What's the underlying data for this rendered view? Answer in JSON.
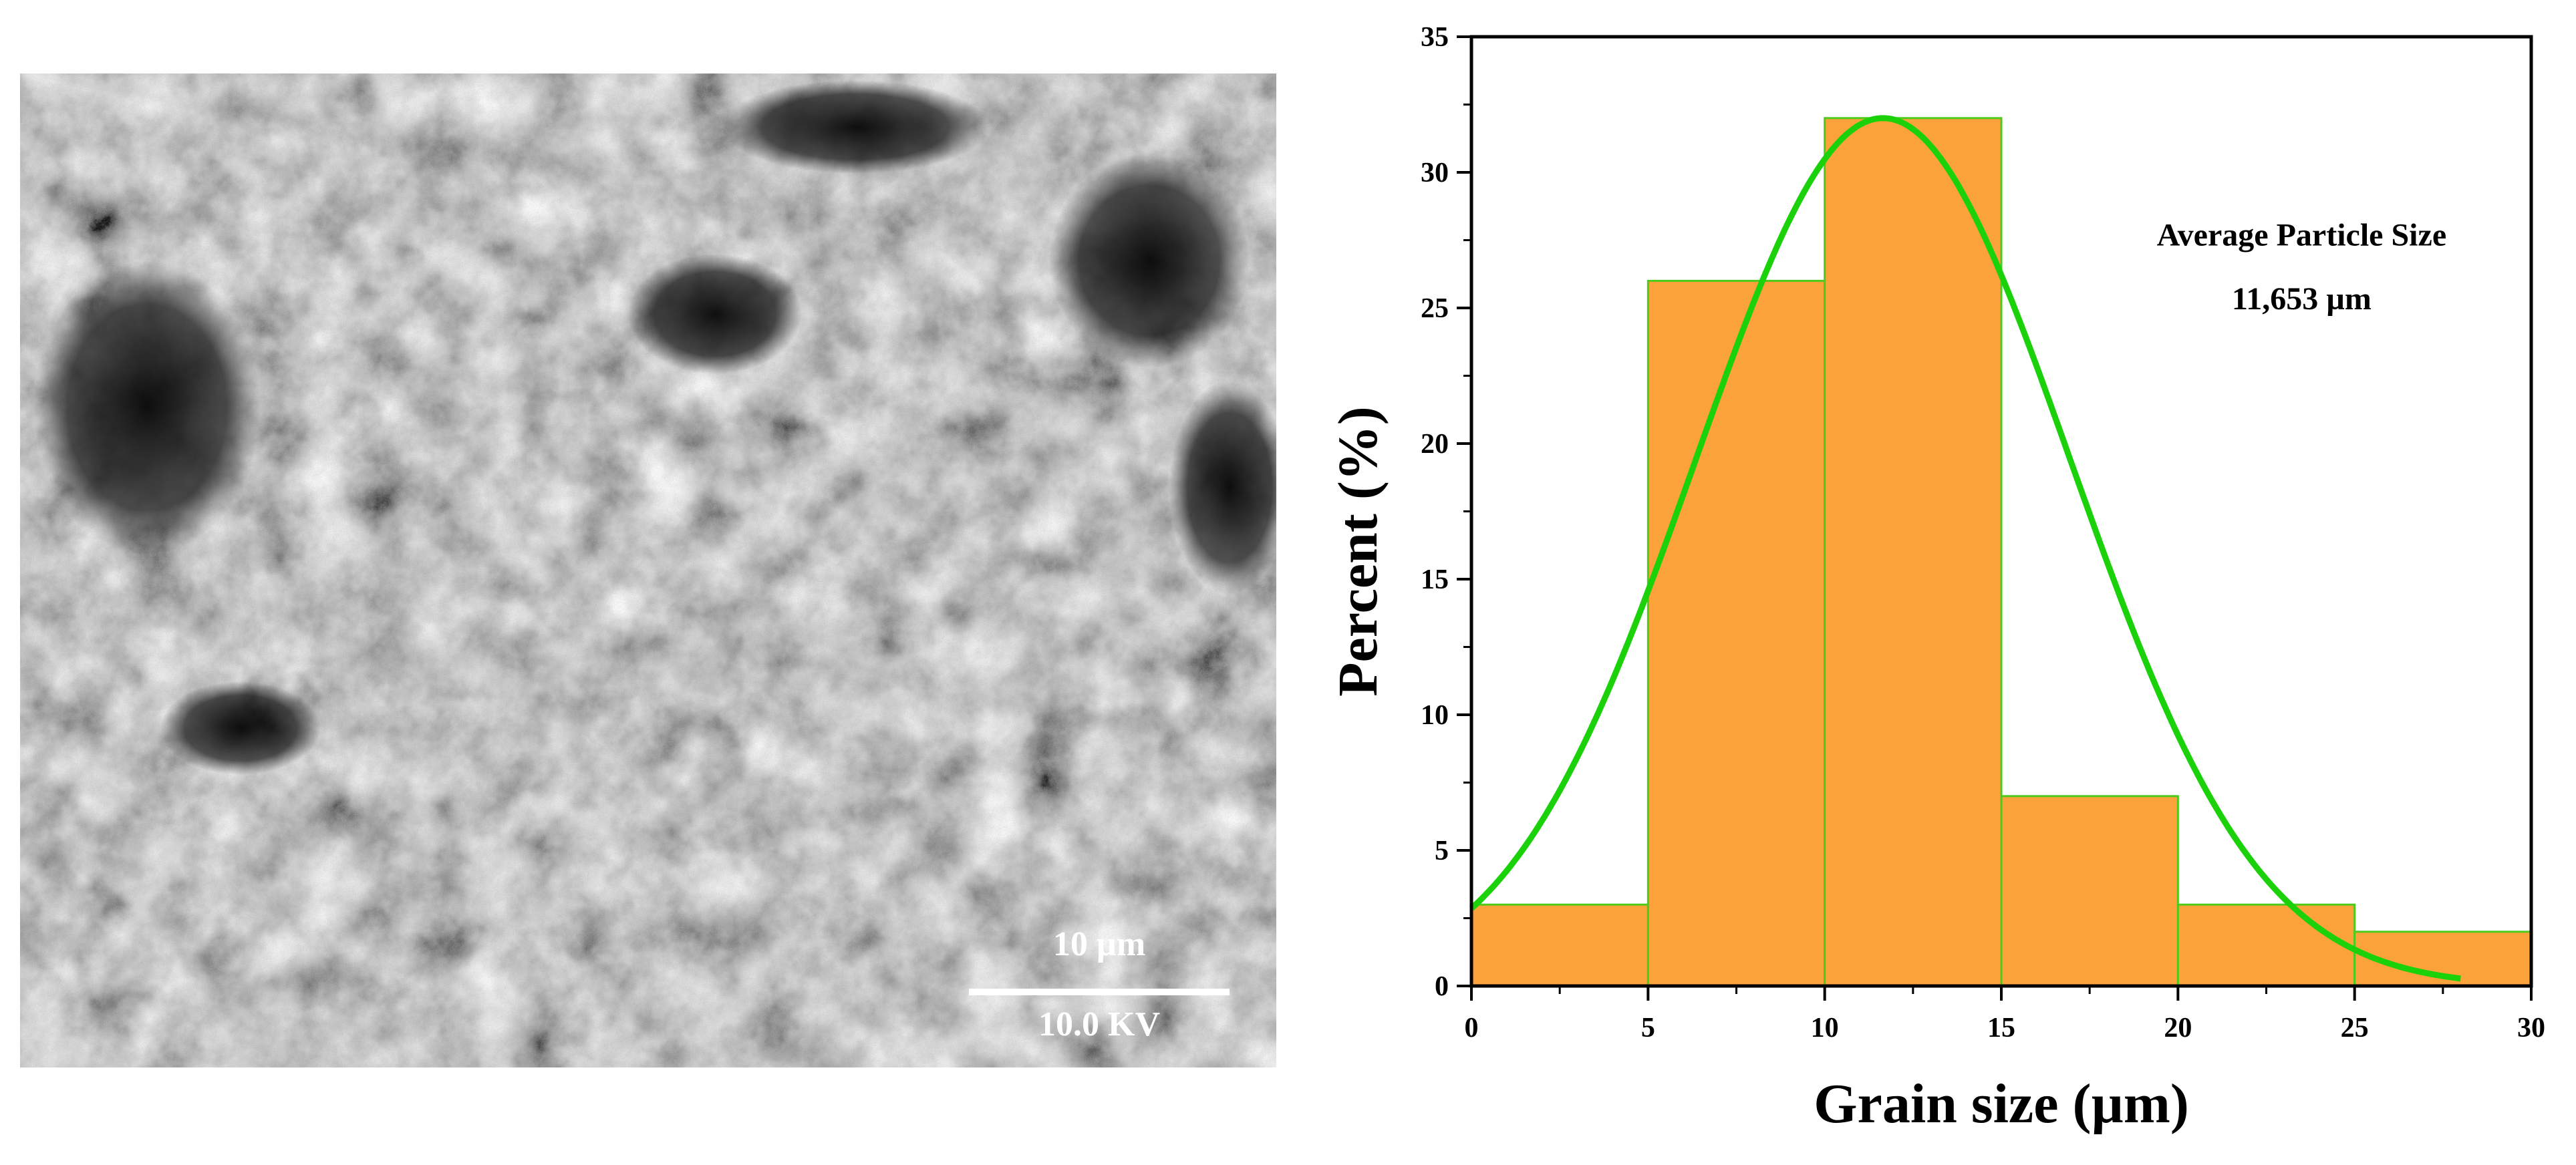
{
  "sem_image": {
    "scale_label": "10 µm",
    "voltage_label": "10.0 KV"
  },
  "chart_data": {
    "type": "bar",
    "bins": [
      {
        "start": 0,
        "end": 5,
        "value": 3
      },
      {
        "start": 5,
        "end": 10,
        "value": 26
      },
      {
        "start": 10,
        "end": 15,
        "value": 32
      },
      {
        "start": 15,
        "end": 20,
        "value": 7
      },
      {
        "start": 20,
        "end": 25,
        "value": 3
      },
      {
        "start": 25,
        "end": 30,
        "value": 2
      }
    ],
    "fit_curve": {
      "type": "normal",
      "mean": 11.65,
      "peak": 32,
      "sigma": 5.3,
      "x_range": [
        0,
        28
      ]
    },
    "xlabel": "Grain size (µm)",
    "ylabel": "Percent (%)",
    "xlim": [
      0,
      30
    ],
    "ylim": [
      0,
      35
    ],
    "xticks": [
      0,
      5,
      10,
      15,
      20,
      25,
      30
    ],
    "yticks": [
      0,
      5,
      10,
      15,
      20,
      25,
      30,
      35
    ],
    "annotation": [
      "Average Particle Size",
      "11,653 µm"
    ],
    "bar_color": "#FBA33A",
    "bar_edge_color": "#4CCB1C",
    "curve_color": "#1BD20A",
    "grid": false
  }
}
